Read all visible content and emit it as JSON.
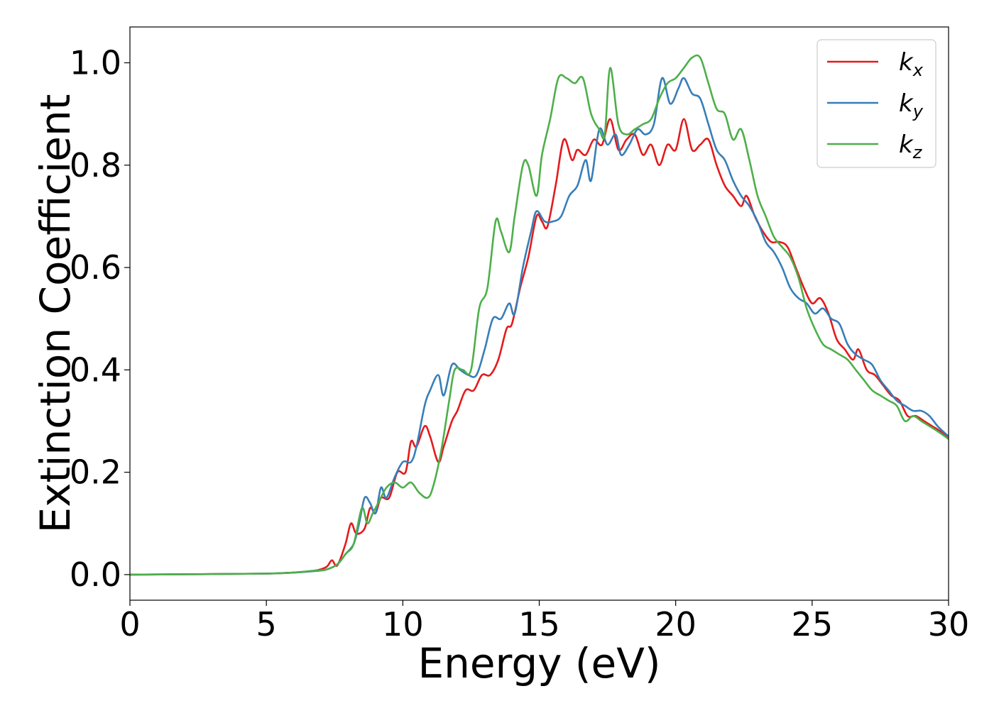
{
  "chart_data": {
    "type": "line",
    "title": "",
    "xlabel": "Energy (eV)",
    "ylabel": "Extinction Coefficient",
    "xlim": [
      0,
      30
    ],
    "ylim": [
      -0.05,
      1.07
    ],
    "xticks": [
      0,
      5,
      10,
      15,
      20,
      25,
      30
    ],
    "xtick_labels": [
      "0",
      "5",
      "10",
      "15",
      "20",
      "25",
      "30"
    ],
    "yticks": [
      0.0,
      0.2,
      0.4,
      0.6,
      0.8,
      1.0
    ],
    "ytick_labels": [
      "0.0",
      "0.2",
      "0.4",
      "0.6",
      "0.8",
      "1.0"
    ],
    "grid": false,
    "legend_position": "top-right",
    "series": [
      {
        "name": "k_x",
        "label_base": "k",
        "label_sub": "x",
        "color": "#e41a1c",
        "points": [
          [
            0,
            0
          ],
          [
            3,
            0.001
          ],
          [
            5,
            0.002
          ],
          [
            6,
            0.004
          ],
          [
            6.8,
            0.008
          ],
          [
            7.2,
            0.015
          ],
          [
            7.4,
            0.028
          ],
          [
            7.6,
            0.018
          ],
          [
            7.9,
            0.06
          ],
          [
            8.1,
            0.1
          ],
          [
            8.3,
            0.08
          ],
          [
            8.6,
            0.09
          ],
          [
            8.8,
            0.13
          ],
          [
            9.0,
            0.12
          ],
          [
            9.2,
            0.15
          ],
          [
            9.5,
            0.15
          ],
          [
            9.8,
            0.2
          ],
          [
            10.1,
            0.2
          ],
          [
            10.3,
            0.26
          ],
          [
            10.5,
            0.25
          ],
          [
            10.8,
            0.29
          ],
          [
            11.0,
            0.27
          ],
          [
            11.3,
            0.22
          ],
          [
            11.5,
            0.25
          ],
          [
            11.8,
            0.3
          ],
          [
            12.0,
            0.32
          ],
          [
            12.3,
            0.36
          ],
          [
            12.6,
            0.36
          ],
          [
            12.9,
            0.39
          ],
          [
            13.2,
            0.39
          ],
          [
            13.5,
            0.42
          ],
          [
            13.8,
            0.48
          ],
          [
            14.0,
            0.49
          ],
          [
            14.3,
            0.56
          ],
          [
            14.6,
            0.62
          ],
          [
            14.9,
            0.7
          ],
          [
            15.1,
            0.69
          ],
          [
            15.3,
            0.68
          ],
          [
            15.6,
            0.76
          ],
          [
            15.9,
            0.85
          ],
          [
            16.2,
            0.81
          ],
          [
            16.4,
            0.83
          ],
          [
            16.7,
            0.82
          ],
          [
            17.0,
            0.85
          ],
          [
            17.3,
            0.84
          ],
          [
            17.6,
            0.89
          ],
          [
            17.9,
            0.83
          ],
          [
            18.2,
            0.85
          ],
          [
            18.5,
            0.86
          ],
          [
            18.8,
            0.82
          ],
          [
            19.1,
            0.84
          ],
          [
            19.4,
            0.8
          ],
          [
            19.7,
            0.84
          ],
          [
            20.0,
            0.83
          ],
          [
            20.3,
            0.89
          ],
          [
            20.6,
            0.83
          ],
          [
            20.9,
            0.84
          ],
          [
            21.2,
            0.85
          ],
          [
            21.5,
            0.8
          ],
          [
            21.8,
            0.76
          ],
          [
            22.1,
            0.74
          ],
          [
            22.4,
            0.72
          ],
          [
            22.6,
            0.74
          ],
          [
            22.9,
            0.7
          ],
          [
            23.2,
            0.67
          ],
          [
            23.5,
            0.65
          ],
          [
            23.8,
            0.65
          ],
          [
            24.1,
            0.64
          ],
          [
            24.4,
            0.6
          ],
          [
            24.7,
            0.56
          ],
          [
            25.0,
            0.53
          ],
          [
            25.3,
            0.54
          ],
          [
            25.6,
            0.51
          ],
          [
            25.9,
            0.46
          ],
          [
            26.2,
            0.44
          ],
          [
            26.5,
            0.42
          ],
          [
            26.7,
            0.44
          ],
          [
            27.0,
            0.4
          ],
          [
            27.3,
            0.39
          ],
          [
            27.6,
            0.37
          ],
          [
            27.9,
            0.35
          ],
          [
            28.2,
            0.34
          ],
          [
            28.5,
            0.31
          ],
          [
            28.8,
            0.31
          ],
          [
            29.1,
            0.3
          ],
          [
            29.4,
            0.29
          ],
          [
            29.7,
            0.28
          ],
          [
            30,
            0.265
          ]
        ]
      },
      {
        "name": "k_y",
        "label_base": "k",
        "label_sub": "y",
        "color": "#377eb8",
        "points": [
          [
            0,
            0
          ],
          [
            3,
            0.001
          ],
          [
            5,
            0.002
          ],
          [
            6,
            0.004
          ],
          [
            6.8,
            0.007
          ],
          [
            7.2,
            0.01
          ],
          [
            7.6,
            0.02
          ],
          [
            7.9,
            0.04
          ],
          [
            8.2,
            0.06
          ],
          [
            8.4,
            0.1
          ],
          [
            8.6,
            0.15
          ],
          [
            8.8,
            0.14
          ],
          [
            9.0,
            0.12
          ],
          [
            9.2,
            0.17
          ],
          [
            9.4,
            0.15
          ],
          [
            9.7,
            0.19
          ],
          [
            10.0,
            0.22
          ],
          [
            10.3,
            0.22
          ],
          [
            10.5,
            0.25
          ],
          [
            10.8,
            0.33
          ],
          [
            11.0,
            0.36
          ],
          [
            11.3,
            0.39
          ],
          [
            11.5,
            0.35
          ],
          [
            11.8,
            0.41
          ],
          [
            12.1,
            0.4
          ],
          [
            12.4,
            0.39
          ],
          [
            12.7,
            0.39
          ],
          [
            13.0,
            0.44
          ],
          [
            13.3,
            0.5
          ],
          [
            13.6,
            0.5
          ],
          [
            13.9,
            0.53
          ],
          [
            14.1,
            0.51
          ],
          [
            14.4,
            0.6
          ],
          [
            14.7,
            0.67
          ],
          [
            14.9,
            0.71
          ],
          [
            15.2,
            0.69
          ],
          [
            15.5,
            0.69
          ],
          [
            15.8,
            0.7
          ],
          [
            16.1,
            0.74
          ],
          [
            16.4,
            0.76
          ],
          [
            16.7,
            0.81
          ],
          [
            16.9,
            0.77
          ],
          [
            17.2,
            0.87
          ],
          [
            17.5,
            0.84
          ],
          [
            17.8,
            0.86
          ],
          [
            18.0,
            0.82
          ],
          [
            18.3,
            0.84
          ],
          [
            18.6,
            0.87
          ],
          [
            18.9,
            0.86
          ],
          [
            19.2,
            0.88
          ],
          [
            19.5,
            0.97
          ],
          [
            19.8,
            0.92
          ],
          [
            20.1,
            0.95
          ],
          [
            20.3,
            0.97
          ],
          [
            20.6,
            0.94
          ],
          [
            20.9,
            0.93
          ],
          [
            21.2,
            0.88
          ],
          [
            21.5,
            0.83
          ],
          [
            21.8,
            0.81
          ],
          [
            22.1,
            0.77
          ],
          [
            22.4,
            0.74
          ],
          [
            22.7,
            0.72
          ],
          [
            23.0,
            0.69
          ],
          [
            23.3,
            0.65
          ],
          [
            23.6,
            0.63
          ],
          [
            23.9,
            0.6
          ],
          [
            24.2,
            0.56
          ],
          [
            24.5,
            0.54
          ],
          [
            24.8,
            0.53
          ],
          [
            25.1,
            0.51
          ],
          [
            25.4,
            0.52
          ],
          [
            25.7,
            0.5
          ],
          [
            26.0,
            0.49
          ],
          [
            26.3,
            0.45
          ],
          [
            26.6,
            0.43
          ],
          [
            26.9,
            0.42
          ],
          [
            27.2,
            0.41
          ],
          [
            27.5,
            0.38
          ],
          [
            27.8,
            0.36
          ],
          [
            28.1,
            0.34
          ],
          [
            28.4,
            0.33
          ],
          [
            28.7,
            0.32
          ],
          [
            29.0,
            0.32
          ],
          [
            29.3,
            0.31
          ],
          [
            29.6,
            0.29
          ],
          [
            30,
            0.27
          ]
        ]
      },
      {
        "name": "k_z",
        "label_base": "k",
        "label_sub": "z",
        "color": "#4daf4a",
        "points": [
          [
            0,
            0
          ],
          [
            3,
            0.001
          ],
          [
            5,
            0.002
          ],
          [
            6,
            0.004
          ],
          [
            6.8,
            0.008
          ],
          [
            7.2,
            0.01
          ],
          [
            7.6,
            0.02
          ],
          [
            7.9,
            0.04
          ],
          [
            8.2,
            0.06
          ],
          [
            8.5,
            0.13
          ],
          [
            8.7,
            0.1
          ],
          [
            8.9,
            0.12
          ],
          [
            9.1,
            0.14
          ],
          [
            9.4,
            0.17
          ],
          [
            9.7,
            0.18
          ],
          [
            10.0,
            0.17
          ],
          [
            10.3,
            0.18
          ],
          [
            10.6,
            0.16
          ],
          [
            10.9,
            0.15
          ],
          [
            11.1,
            0.17
          ],
          [
            11.4,
            0.24
          ],
          [
            11.7,
            0.34
          ],
          [
            11.9,
            0.4
          ],
          [
            12.2,
            0.4
          ],
          [
            12.5,
            0.4
          ],
          [
            12.8,
            0.52
          ],
          [
            13.1,
            0.56
          ],
          [
            13.4,
            0.69
          ],
          [
            13.6,
            0.67
          ],
          [
            13.9,
            0.63
          ],
          [
            14.1,
            0.7
          ],
          [
            14.4,
            0.8
          ],
          [
            14.6,
            0.8
          ],
          [
            14.9,
            0.74
          ],
          [
            15.1,
            0.82
          ],
          [
            15.4,
            0.89
          ],
          [
            15.7,
            0.97
          ],
          [
            16.0,
            0.97
          ],
          [
            16.3,
            0.96
          ],
          [
            16.6,
            0.97
          ],
          [
            16.9,
            0.9
          ],
          [
            17.2,
            0.87
          ],
          [
            17.4,
            0.86
          ],
          [
            17.6,
            0.99
          ],
          [
            17.9,
            0.88
          ],
          [
            18.2,
            0.86
          ],
          [
            18.5,
            0.87
          ],
          [
            18.8,
            0.88
          ],
          [
            19.1,
            0.89
          ],
          [
            19.4,
            0.93
          ],
          [
            19.7,
            0.96
          ],
          [
            20.0,
            0.97
          ],
          [
            20.3,
            0.99
          ],
          [
            20.6,
            1.01
          ],
          [
            20.9,
            1.01
          ],
          [
            21.2,
            0.96
          ],
          [
            21.5,
            0.91
          ],
          [
            21.8,
            0.9
          ],
          [
            22.1,
            0.85
          ],
          [
            22.4,
            0.87
          ],
          [
            22.7,
            0.81
          ],
          [
            23.0,
            0.74
          ],
          [
            23.3,
            0.7
          ],
          [
            23.6,
            0.66
          ],
          [
            23.9,
            0.64
          ],
          [
            24.2,
            0.62
          ],
          [
            24.5,
            0.58
          ],
          [
            24.8,
            0.52
          ],
          [
            25.1,
            0.48
          ],
          [
            25.4,
            0.45
          ],
          [
            25.7,
            0.44
          ],
          [
            26.0,
            0.43
          ],
          [
            26.3,
            0.42
          ],
          [
            26.6,
            0.4
          ],
          [
            26.9,
            0.38
          ],
          [
            27.2,
            0.36
          ],
          [
            27.5,
            0.35
          ],
          [
            27.8,
            0.34
          ],
          [
            28.1,
            0.33
          ],
          [
            28.4,
            0.3
          ],
          [
            28.7,
            0.31
          ],
          [
            29.0,
            0.3
          ],
          [
            29.3,
            0.29
          ],
          [
            29.6,
            0.28
          ],
          [
            30,
            0.265
          ]
        ]
      }
    ]
  }
}
